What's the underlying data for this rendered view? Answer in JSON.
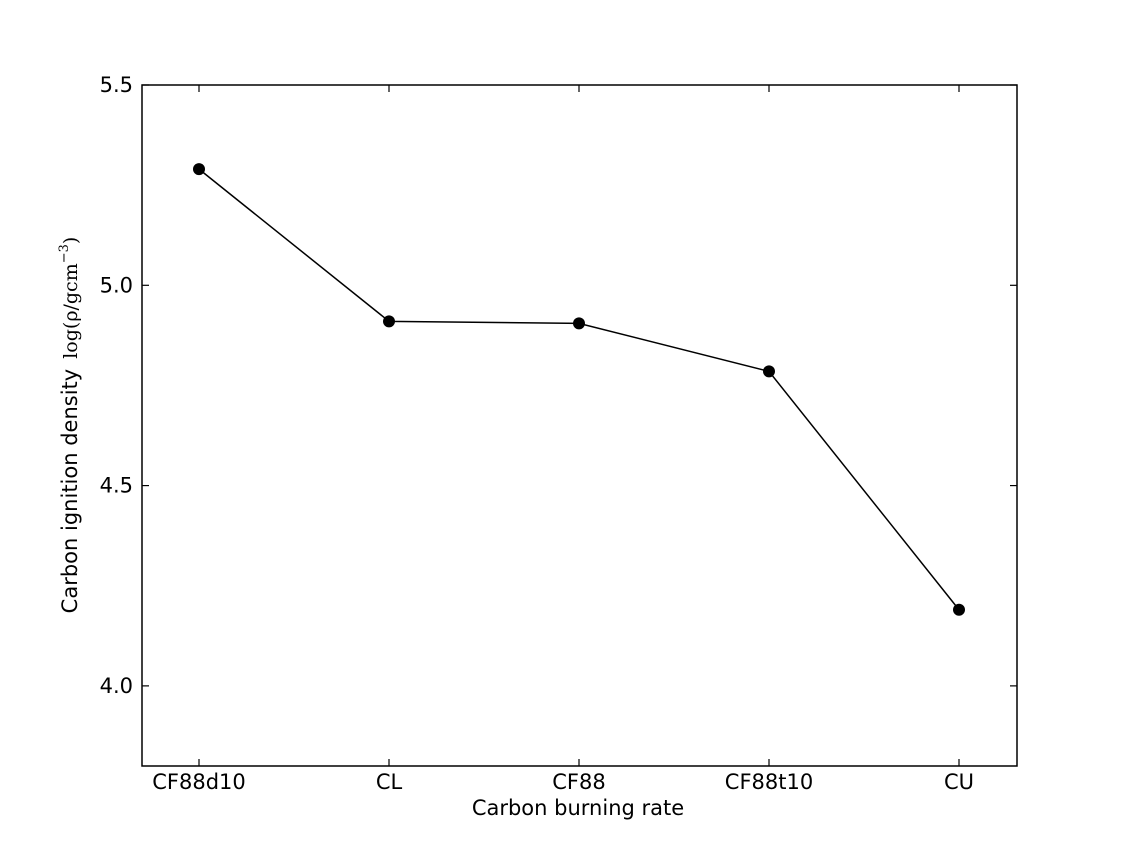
{
  "chart_data": {
    "type": "line",
    "title": "",
    "xlabel": "Carbon burning rate",
    "ylabel": "Carbon ignition density",
    "ylabel_math_prefix": "log(ρ/gcm",
    "ylabel_math_exp": "−3",
    "ylabel_math_suffix": ")",
    "categories": [
      "CF88d10",
      "CL",
      "CF88",
      "CF88t10",
      "CU"
    ],
    "series": [
      {
        "values": [
          5.29,
          4.91,
          4.905,
          4.785,
          4.19
        ],
        "color": "#000000",
        "marker": "circle"
      }
    ],
    "ylim": [
      3.8,
      5.5
    ],
    "yticks": [
      4.0,
      4.5,
      5.0,
      5.5
    ],
    "ytick_labels": [
      "4.0",
      "4.5",
      "5.0",
      "5.5"
    ],
    "grid": false,
    "legend": false
  }
}
